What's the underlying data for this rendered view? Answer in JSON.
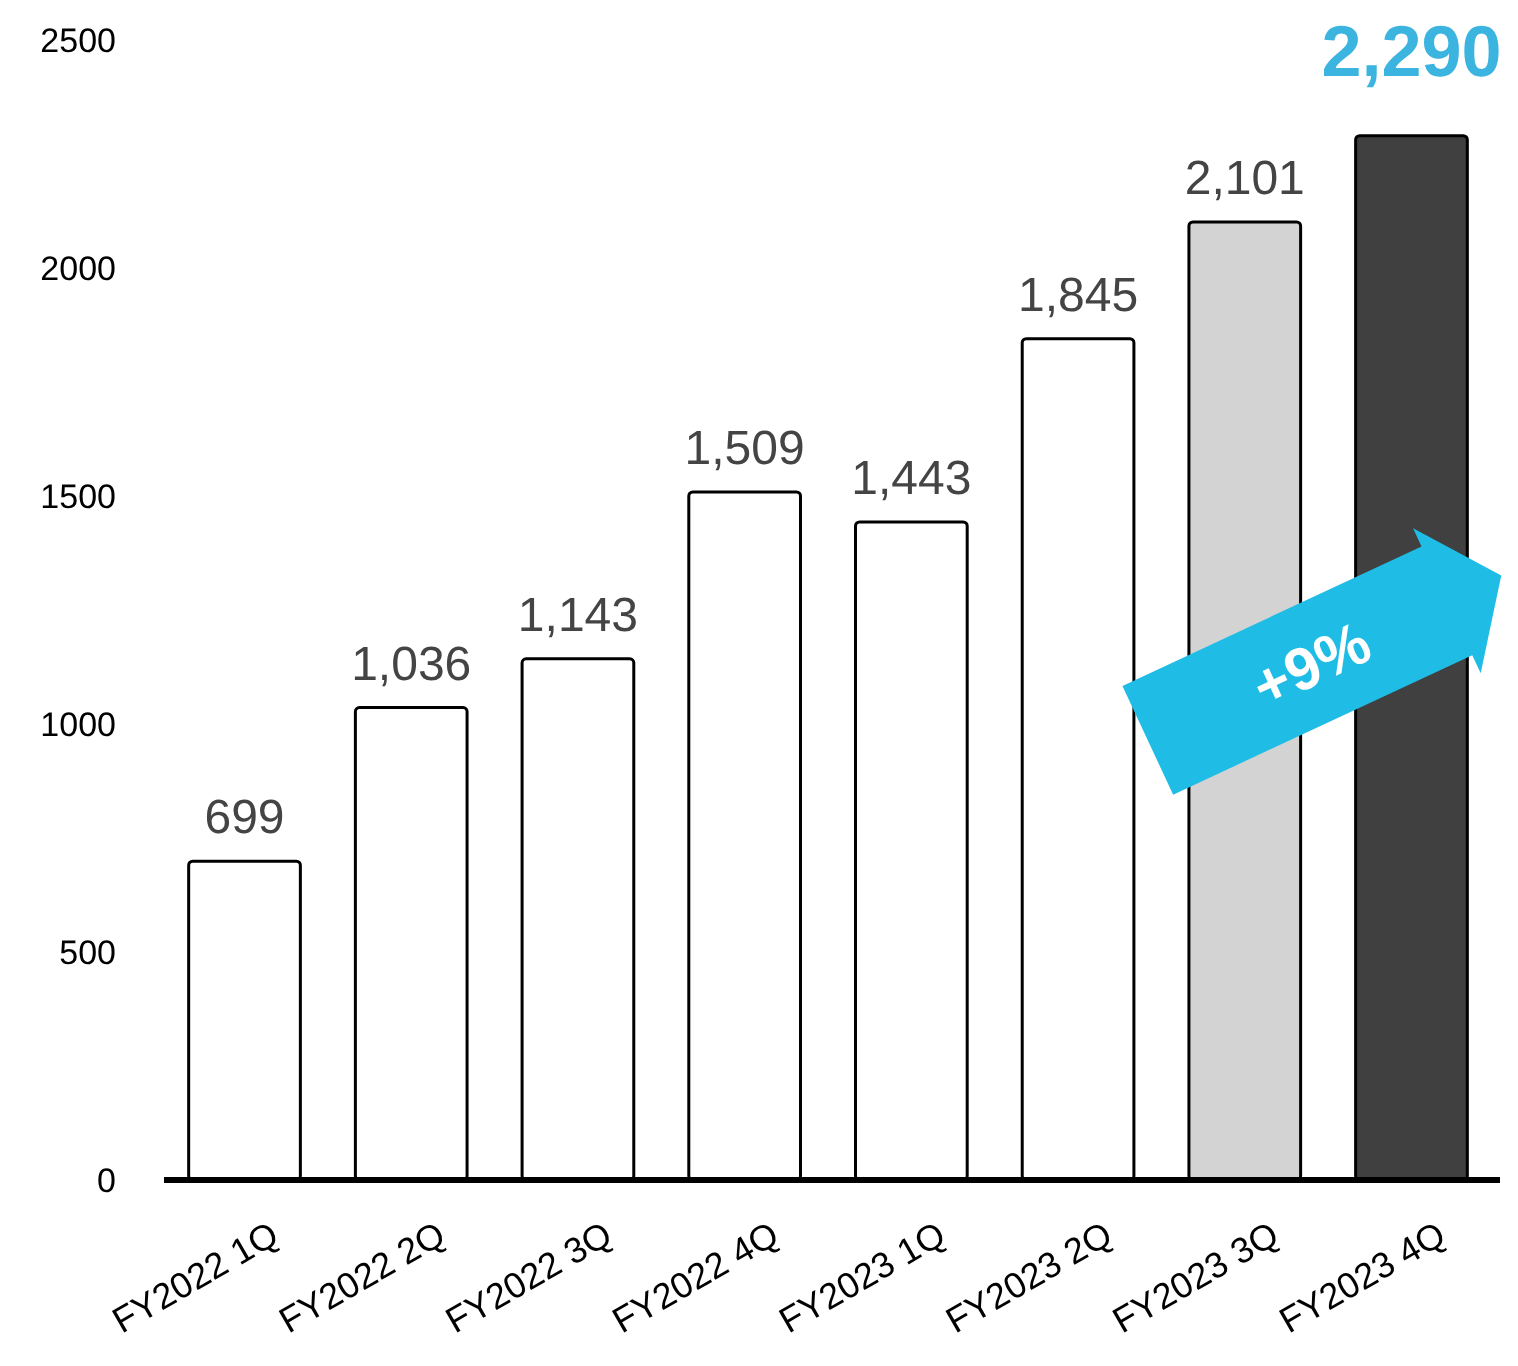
{
  "chart_data": {
    "type": "bar",
    "categories": [
      "FY2022 1Q",
      "FY2022 2Q",
      "FY2022 3Q",
      "FY2022 4Q",
      "FY2023 1Q",
      "FY2023 2Q",
      "FY2023 3Q",
      "FY2023 4Q"
    ],
    "values": [
      699,
      1036,
      1143,
      1509,
      1443,
      1845,
      2101,
      2290
    ],
    "colors": [
      "#ffffff",
      "#ffffff",
      "#ffffff",
      "#ffffff",
      "#ffffff",
      "#ffffff",
      "#d3d3d3",
      "#404040"
    ],
    "value_labels": [
      "699",
      "1,036",
      "1,143",
      "1,509",
      "1,443",
      "1,845",
      "2,101",
      "2,290"
    ],
    "ylim": [
      0,
      2500
    ],
    "yticks": [
      0,
      500,
      1000,
      1500,
      2000,
      2500
    ],
    "grid": false,
    "annotations": [
      "+9%"
    ]
  }
}
